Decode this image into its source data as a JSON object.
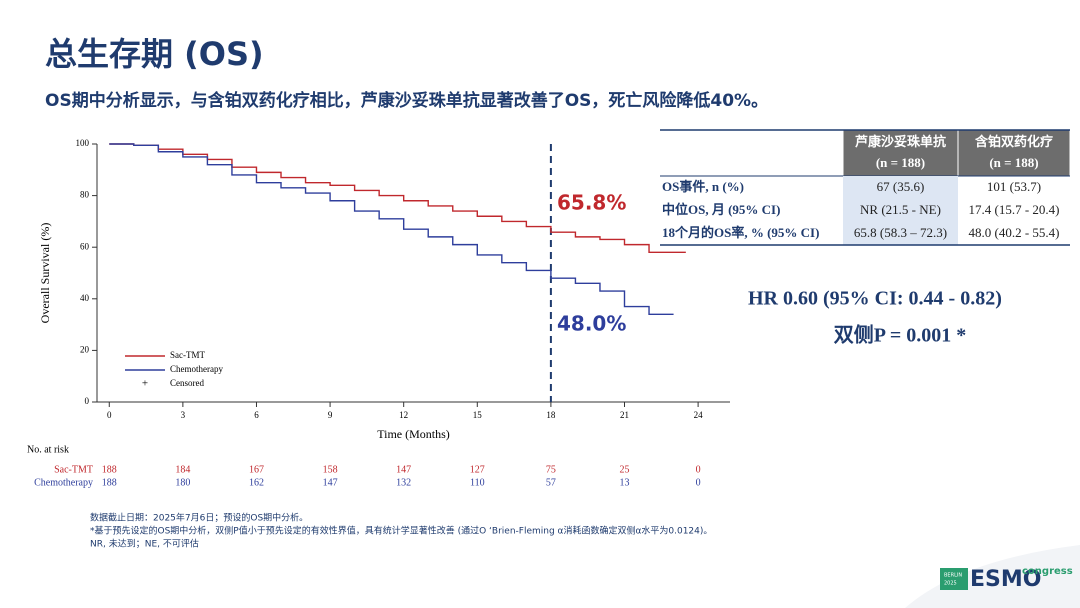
{
  "header": {
    "title": "总生存期 (OS)",
    "subtitle": "OS期中分析显示，与含铂双药化疗相比，芦康沙妥珠单抗显著改善了OS，死亡风险降低40%。"
  },
  "chart_data": {
    "type": "line",
    "step": true,
    "x_label": "Time (Months)",
    "y_label": "Overall Survival (%)",
    "x": [
      0,
      1,
      2,
      3,
      4,
      5,
      6,
      7,
      8,
      9,
      10,
      11,
      12,
      13,
      14,
      15,
      16,
      17,
      18,
      19,
      20,
      21,
      22,
      23,
      23.5
    ],
    "series": [
      {
        "name": "Sac-TMT",
        "color": "#c0282d",
        "values": [
          100,
          99.5,
          98,
          96,
          94,
          91,
          89,
          87,
          85,
          84,
          82,
          80,
          78,
          76,
          74,
          72,
          70,
          68,
          65.8,
          64,
          63,
          61,
          58,
          58,
          58
        ]
      },
      {
        "name": "Chemotherapy",
        "color": "#2e3e9c",
        "values": [
          100,
          99.5,
          97,
          95,
          92,
          88,
          85,
          83,
          81,
          78,
          74,
          71,
          67,
          64,
          61,
          57,
          54,
          51,
          48,
          46,
          43,
          37,
          34,
          34,
          null
        ]
      }
    ],
    "censored_label": "Censored",
    "xlim": [
      -0.5,
      25.3
    ],
    "ylim": [
      0,
      100
    ],
    "xticks": [
      0,
      3,
      6,
      9,
      12,
      15,
      18,
      21,
      24
    ],
    "yticks": [
      0,
      20,
      40,
      60,
      80,
      100
    ],
    "reference_line": {
      "x": 18,
      "color": "#1f3b6e"
    },
    "annotations": [
      {
        "text": "65.8%",
        "color": "#c0282d"
      },
      {
        "text": "48.0%",
        "color": "#2e3e9c"
      }
    ],
    "risk_table": {
      "title": "No. at risk",
      "rows": [
        {
          "name": "Sac-TMT",
          "values": [
            188,
            184,
            167,
            158,
            147,
            127,
            75,
            25,
            0
          ]
        },
        {
          "name": "Chemotherapy",
          "values": [
            188,
            180,
            162,
            147,
            132,
            110,
            57,
            13,
            0
          ]
        }
      ]
    }
  },
  "table": {
    "header": [
      [
        "芦康沙妥珠单抗",
        "(n = 188)"
      ],
      [
        "含铂双药化疗",
        "(n = 188)"
      ]
    ],
    "rows": [
      [
        "OS事件, n (%)",
        "67 (35.6)",
        "101 (53.7)"
      ],
      [
        "中位OS, 月 (95% CI)",
        "NR (21.5 - NE)",
        "17.4 (15.7 - 20.4)"
      ],
      [
        "18个月的OS率, % (95% CI)",
        "65.8 (58.3 – 72.3)",
        "48.0 (40.2 - 55.4)"
      ]
    ]
  },
  "hazard": {
    "hr": "HR 0.60 (95% CI: 0.44 - 0.82)",
    "p": "双侧P = 0.001 *"
  },
  "footnotes": [
    "数据截止日期：2025年7月6日；预设的OS期中分析。",
    "*基于预先设定的OS期中分析，双侧P值小于预先设定的有效性界值，具有统计学显著性改善 (通过O ‘Brien-Fleming α消耗函数确定双侧α水平为0.0124)。",
    "NR, 未达到；NE, 不可评估"
  ],
  "logo": {
    "city": "BERLIN",
    "year": "2025",
    "brand": "ESMO",
    "event": "congress"
  }
}
